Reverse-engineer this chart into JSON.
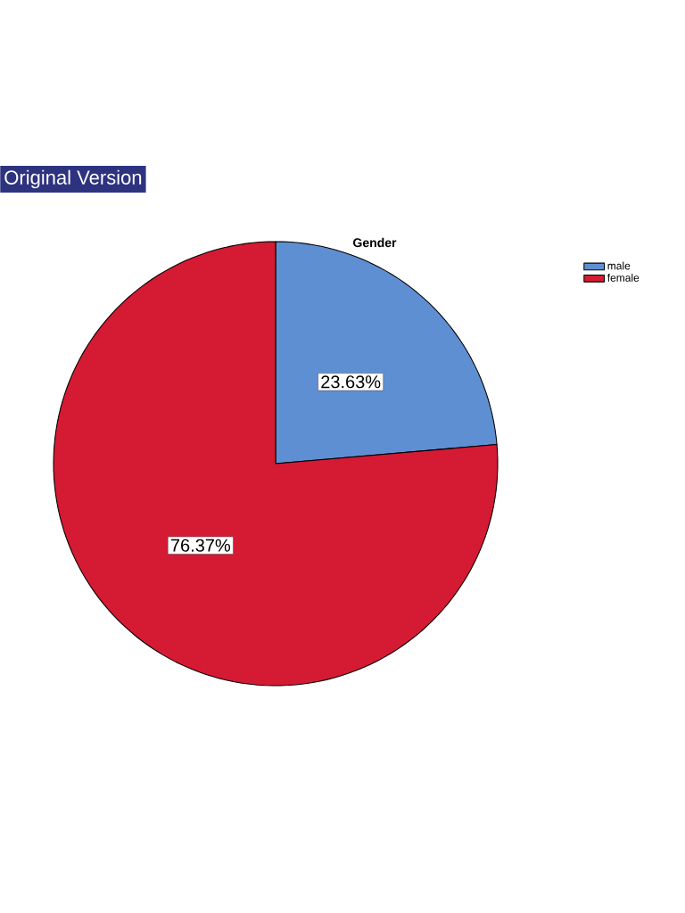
{
  "chart_data": {
    "type": "pie",
    "title": "Gender",
    "categories": [
      "male",
      "female"
    ],
    "values": [
      23.63,
      76.37
    ],
    "colors": [
      "#5f8fd3",
      "#d51a33"
    ],
    "value_labels": [
      "23.63%",
      "76.37%"
    ],
    "legend": "top right",
    "annotations": [
      "Original Version"
    ]
  }
}
